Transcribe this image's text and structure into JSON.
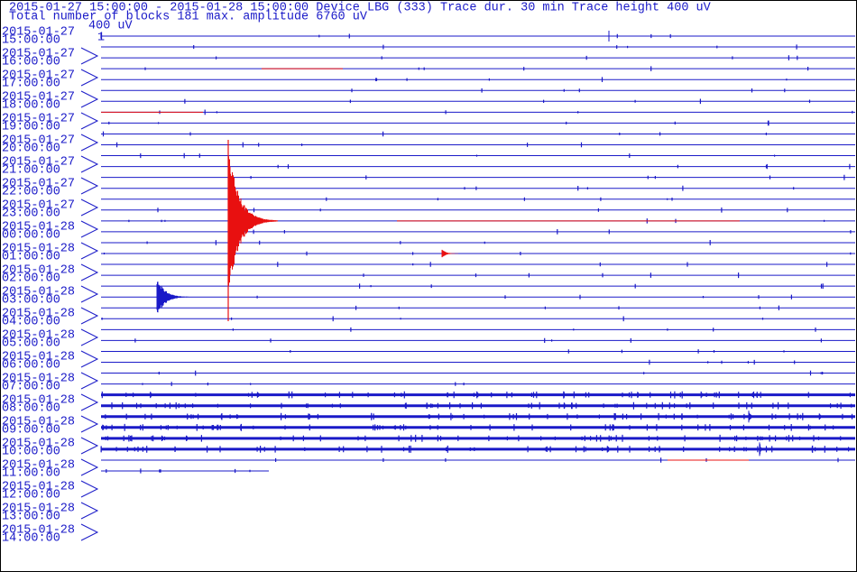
{
  "header": {
    "line1": "2015-01-27 15:00:00 - 2015-01-28 15:00:00  Device  LBG (333)  Trace dur. 30 min  Trace height 400 uV",
    "line2": "Total number of blocks 181 max. amplitude 6760 uV",
    "scale": "400 uV",
    "marker": "1"
  },
  "time_labels": [
    {
      "date": "2015-01-27",
      "time": "15:00:00"
    },
    {
      "date": "2015-01-27",
      "time": "16:00:00"
    },
    {
      "date": "2015-01-27",
      "time": "17:00:00"
    },
    {
      "date": "2015-01-27",
      "time": "18:00:00"
    },
    {
      "date": "2015-01-27",
      "time": "19:00:00"
    },
    {
      "date": "2015-01-27",
      "time": "20:00:00"
    },
    {
      "date": "2015-01-27",
      "time": "21:00:00"
    },
    {
      "date": "2015-01-27",
      "time": "22:00:00"
    },
    {
      "date": "2015-01-27",
      "time": "23:00:00"
    },
    {
      "date": "2015-01-28",
      "time": "00:00:00"
    },
    {
      "date": "2015-01-28",
      "time": "01:00:00"
    },
    {
      "date": "2015-01-28",
      "time": "02:00:00"
    },
    {
      "date": "2015-01-28",
      "time": "03:00:00"
    },
    {
      "date": "2015-01-28",
      "time": "04:00:00"
    },
    {
      "date": "2015-01-28",
      "time": "05:00:00"
    },
    {
      "date": "2015-01-28",
      "time": "06:00:00"
    },
    {
      "date": "2015-01-28",
      "time": "07:00:00"
    },
    {
      "date": "2015-01-28",
      "time": "08:00:00"
    },
    {
      "date": "2015-01-28",
      "time": "09:00:00"
    },
    {
      "date": "2015-01-28",
      "time": "10:00:00"
    },
    {
      "date": "2015-01-28",
      "time": "11:00:00"
    },
    {
      "date": "2015-01-28",
      "time": "12:00:00"
    },
    {
      "date": "2015-01-28",
      "time": "13:00:00"
    },
    {
      "date": "2015-01-28",
      "time": "14:00:00"
    }
  ]
}
